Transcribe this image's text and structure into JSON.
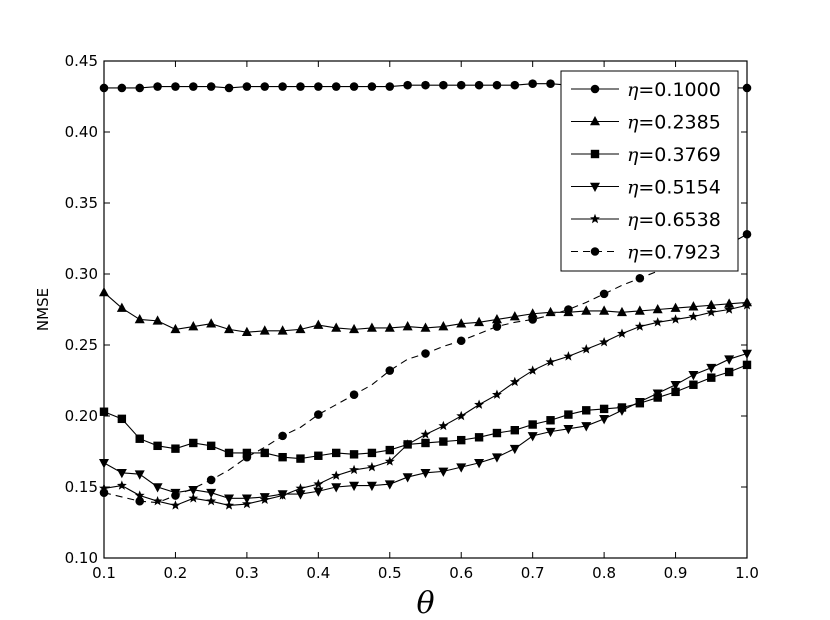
{
  "chart_data": {
    "type": "line",
    "xlabel": "θ",
    "ylabel": "NMSE",
    "xlim": [
      0.1,
      1.0
    ],
    "ylim": [
      0.1,
      0.45
    ],
    "xticks": [
      "0.1",
      "0.2",
      "0.3",
      "0.4",
      "0.5",
      "0.6",
      "0.7",
      "0.8",
      "0.9",
      "1.0"
    ],
    "yticks": [
      "0.10",
      "0.15",
      "0.20",
      "0.25",
      "0.30",
      "0.35",
      "0.40",
      "0.45"
    ],
    "legend_position": "top-right",
    "x": [
      0.1,
      0.125,
      0.15,
      0.175,
      0.2,
      0.225,
      0.25,
      0.275,
      0.3,
      0.325,
      0.35,
      0.375,
      0.4,
      0.425,
      0.45,
      0.475,
      0.5,
      0.525,
      0.55,
      0.575,
      0.6,
      0.625,
      0.65,
      0.675,
      0.7,
      0.725,
      0.75,
      0.775,
      0.8,
      0.825,
      0.85,
      0.875,
      0.9,
      0.925,
      0.95,
      0.975,
      1.0
    ],
    "series": [
      {
        "name": "=0.1000",
        "marker": "circle",
        "dashed": false,
        "values": [
          0.431,
          0.431,
          0.431,
          0.432,
          0.432,
          0.432,
          0.432,
          0.431,
          0.432,
          0.432,
          0.432,
          0.432,
          0.432,
          0.432,
          0.432,
          0.432,
          0.432,
          0.433,
          0.433,
          0.433,
          0.433,
          0.433,
          0.433,
          0.433,
          0.434,
          0.434,
          0.433,
          0.433,
          0.433,
          0.433,
          0.433,
          0.433,
          0.432,
          0.432,
          0.432,
          0.431,
          0.431
        ]
      },
      {
        "name": "=0.2385",
        "marker": "triangle-up",
        "dashed": false,
        "values": [
          0.287,
          0.276,
          0.268,
          0.267,
          0.261,
          0.263,
          0.265,
          0.261,
          0.259,
          0.26,
          0.26,
          0.261,
          0.264,
          0.262,
          0.261,
          0.262,
          0.262,
          0.263,
          0.262,
          0.263,
          0.265,
          0.266,
          0.268,
          0.27,
          0.272,
          0.273,
          0.273,
          0.274,
          0.274,
          0.273,
          0.274,
          0.275,
          0.276,
          0.277,
          0.278,
          0.279,
          0.28
        ]
      },
      {
        "name": "=0.3769",
        "marker": "square",
        "dashed": false,
        "values": [
          0.203,
          0.198,
          0.184,
          0.179,
          0.177,
          0.181,
          0.179,
          0.174,
          0.174,
          0.174,
          0.171,
          0.17,
          0.172,
          0.174,
          0.173,
          0.174,
          0.176,
          0.18,
          0.181,
          0.182,
          0.183,
          0.185,
          0.188,
          0.19,
          0.194,
          0.197,
          0.201,
          0.204,
          0.205,
          0.206,
          0.209,
          0.213,
          0.217,
          0.222,
          0.227,
          0.231,
          0.236
        ]
      },
      {
        "name": "=0.5154",
        "marker": "triangle-down",
        "dashed": false,
        "values": [
          0.167,
          0.16,
          0.159,
          0.15,
          0.146,
          0.148,
          0.146,
          0.142,
          0.142,
          0.143,
          0.145,
          0.145,
          0.147,
          0.15,
          0.151,
          0.151,
          0.152,
          0.157,
          0.16,
          0.161,
          0.164,
          0.167,
          0.171,
          0.177,
          0.186,
          0.189,
          0.191,
          0.193,
          0.198,
          0.204,
          0.21,
          0.216,
          0.222,
          0.229,
          0.234,
          0.24,
          0.244
        ]
      },
      {
        "name": "=0.6538",
        "marker": "star",
        "dashed": false,
        "values": [
          0.149,
          0.151,
          0.144,
          0.14,
          0.137,
          0.142,
          0.14,
          0.137,
          0.138,
          0.141,
          0.144,
          0.149,
          0.152,
          0.158,
          0.162,
          0.164,
          0.168,
          0.18,
          0.187,
          0.193,
          0.2,
          0.208,
          0.215,
          0.224,
          0.232,
          0.238,
          0.242,
          0.247,
          0.252,
          0.258,
          0.263,
          0.266,
          0.268,
          0.27,
          0.273,
          0.275,
          0.278
        ]
      },
      {
        "name": "=0.7923",
        "marker": "circle",
        "dashed": true,
        "values": [
          0.146,
          0.143,
          0.14,
          0.139,
          0.144,
          0.149,
          0.155,
          0.162,
          0.171,
          0.178,
          0.186,
          0.192,
          0.201,
          0.208,
          0.215,
          0.222,
          0.232,
          0.24,
          0.244,
          0.249,
          0.253,
          0.258,
          0.263,
          0.266,
          0.268,
          0.271,
          0.275,
          0.28,
          0.286,
          0.292,
          0.297,
          0.302,
          0.306,
          0.31,
          0.315,
          0.321,
          0.328
        ]
      }
    ]
  },
  "legend": {
    "symbol": "η"
  }
}
